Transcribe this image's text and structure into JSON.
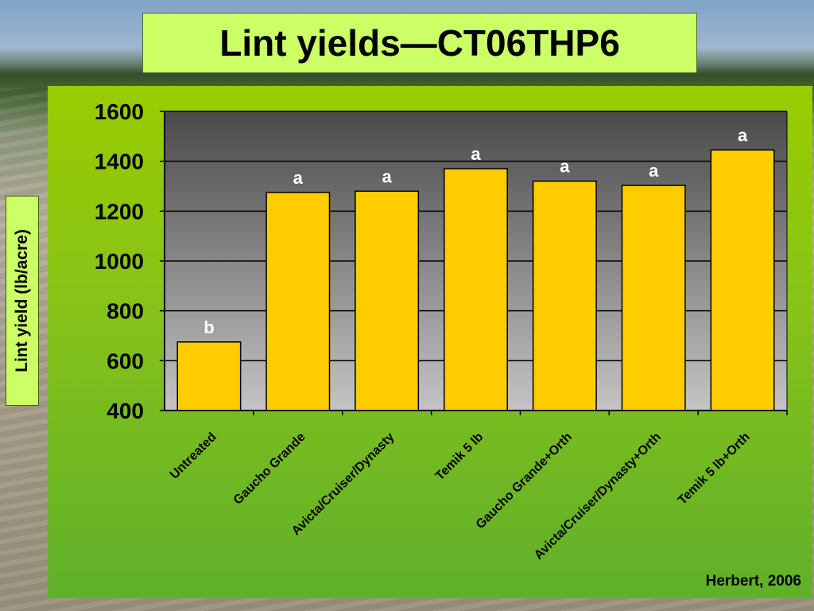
{
  "title": "Lint yields—CT06THP6",
  "source_note": "Herbert, 2006",
  "colors": {
    "bar_fill": "#ffcc00",
    "panel_green": "#99cc00",
    "label_box": "#ccff66",
    "letter_text": "#ffffff"
  },
  "chart_data": {
    "type": "bar",
    "title": "Lint yields—CT06THP6",
    "xlabel": "",
    "ylabel": "Lint yield (lb/acre)",
    "ylim": [
      400,
      1600
    ],
    "yticks": [
      400,
      600,
      800,
      1000,
      1200,
      1400,
      1600
    ],
    "grid": true,
    "categories": [
      "Untreated",
      "Gaucho Grande",
      "Avicta/Cruiser/Dynasty",
      "Temik 5 lb",
      "Gaucho Grande+Orth",
      "Avicta/Cruiser/Dynasty+Orth",
      "Temik 5 lb+Orth"
    ],
    "values": [
      675,
      1275,
      1280,
      1370,
      1320,
      1303,
      1445
    ],
    "annotations": [
      "b",
      "a",
      "a",
      "a",
      "a",
      "a",
      "a"
    ]
  }
}
